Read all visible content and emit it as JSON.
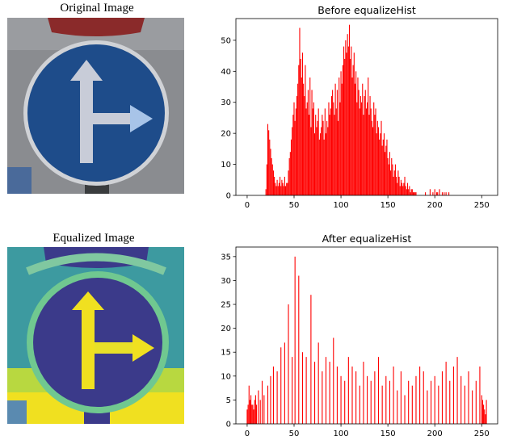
{
  "panels": {
    "original_title": "Original Image",
    "equalized_title": "Equalized Image"
  },
  "colors": {
    "bar": "#ff0000",
    "axis": "#000000",
    "sign_blue": "#1e4c8a",
    "sign_white": "#c8ccd8",
    "sign_red": "#8a2a2a",
    "eq_bg": "#3d9aa0",
    "eq_yellow": "#f0e020",
    "eq_purple": "#3b3a8a"
  },
  "icons": {
    "original": "traffic-sign-photo",
    "equalized": "equalized-traffic-sign-photo"
  },
  "chart_data": [
    {
      "type": "bar",
      "title": "Before equalizeHist",
      "xlabel": "",
      "ylabel": "",
      "xlim": [
        -12,
        267
      ],
      "ylim": [
        0,
        57
      ],
      "xticks": [
        0,
        50,
        100,
        150,
        200,
        250
      ],
      "yticks": [
        0,
        10,
        20,
        30,
        40,
        50
      ],
      "series": [
        {
          "name": "histogram",
          "x": [
            20,
            21,
            22,
            23,
            24,
            25,
            26,
            27,
            28,
            29,
            30,
            31,
            32,
            33,
            34,
            35,
            36,
            37,
            38,
            39,
            40,
            41,
            42,
            43,
            44,
            45,
            46,
            47,
            48,
            49,
            50,
            51,
            52,
            53,
            54,
            55,
            56,
            57,
            58,
            59,
            60,
            61,
            62,
            63,
            64,
            65,
            66,
            67,
            68,
            69,
            70,
            71,
            72,
            73,
            74,
            75,
            76,
            77,
            78,
            79,
            80,
            81,
            82,
            83,
            84,
            85,
            86,
            87,
            88,
            89,
            90,
            91,
            92,
            93,
            94,
            95,
            96,
            97,
            98,
            99,
            100,
            101,
            102,
            103,
            104,
            105,
            106,
            107,
            108,
            109,
            110,
            111,
            112,
            113,
            114,
            115,
            116,
            117,
            118,
            119,
            120,
            121,
            122,
            123,
            124,
            125,
            126,
            127,
            128,
            129,
            130,
            131,
            132,
            133,
            134,
            135,
            136,
            137,
            138,
            139,
            140,
            141,
            142,
            143,
            144,
            145,
            146,
            147,
            148,
            149,
            150,
            151,
            152,
            153,
            154,
            155,
            156,
            157,
            158,
            159,
            160,
            161,
            162,
            163,
            164,
            165,
            166,
            167,
            168,
            169,
            170,
            171,
            172,
            173,
            174,
            175,
            176,
            177,
            178,
            179,
            180,
            190,
            195,
            198,
            200,
            202,
            203,
            205,
            208,
            210,
            212,
            215
          ],
          "values": [
            2,
            10,
            23,
            21,
            18,
            15,
            12,
            10,
            8,
            6,
            4,
            3,
            5,
            3,
            4,
            6,
            3,
            5,
            4,
            3,
            6,
            3,
            4,
            4,
            8,
            12,
            14,
            18,
            22,
            26,
            30,
            24,
            28,
            32,
            36,
            42,
            54,
            44,
            38,
            46,
            36,
            32,
            42,
            28,
            30,
            34,
            26,
            38,
            22,
            34,
            28,
            30,
            20,
            26,
            22,
            24,
            28,
            18,
            20,
            22,
            26,
            24,
            18,
            28,
            20,
            24,
            22,
            30,
            26,
            28,
            32,
            34,
            30,
            26,
            36,
            28,
            34,
            24,
            38,
            30,
            40,
            36,
            42,
            48,
            44,
            50,
            46,
            52,
            48,
            55,
            44,
            48,
            38,
            42,
            46,
            36,
            40,
            30,
            38,
            34,
            28,
            32,
            30,
            36,
            26,
            32,
            34,
            28,
            30,
            38,
            26,
            32,
            28,
            24,
            22,
            30,
            26,
            28,
            20,
            24,
            22,
            18,
            20,
            24,
            16,
            18,
            20,
            14,
            16,
            18,
            12,
            10,
            14,
            8,
            12,
            10,
            6,
            8,
            10,
            6,
            4,
            8,
            6,
            3,
            5,
            4,
            3,
            4,
            6,
            3,
            2,
            4,
            2,
            3,
            1,
            2,
            2,
            1,
            1,
            1,
            1,
            1,
            2,
            1,
            2,
            1,
            1,
            2,
            1,
            1,
            1,
            1
          ]
        }
      ]
    },
    {
      "type": "bar",
      "title": "After equalizeHist",
      "xlabel": "",
      "ylabel": "",
      "xlim": [
        -12,
        267
      ],
      "ylim": [
        0,
        37
      ],
      "xticks": [
        0,
        50,
        100,
        150,
        200,
        250
      ],
      "yticks": [
        0,
        5,
        10,
        15,
        20,
        25,
        30,
        35
      ],
      "series": [
        {
          "name": "histogram",
          "x": [
            0,
            1,
            2,
            3,
            4,
            5,
            6,
            7,
            8,
            9,
            10,
            12,
            14,
            16,
            18,
            22,
            25,
            28,
            32,
            36,
            40,
            44,
            48,
            51,
            55,
            59,
            63,
            68,
            72,
            76,
            80,
            84,
            88,
            92,
            96,
            100,
            104,
            108,
            112,
            116,
            120,
            124,
            128,
            132,
            136,
            140,
            144,
            148,
            152,
            156,
            160,
            164,
            168,
            172,
            176,
            180,
            184,
            188,
            192,
            196,
            200,
            204,
            208,
            212,
            216,
            220,
            224,
            228,
            232,
            236,
            240,
            244,
            248,
            250,
            251,
            252,
            253,
            254,
            255
          ],
          "values": [
            3,
            4,
            8,
            5,
            6,
            4,
            4,
            3,
            5,
            6,
            4,
            7,
            5,
            9,
            6,
            8,
            10,
            12,
            11,
            16,
            17,
            25,
            14,
            35,
            31,
            15,
            14,
            27,
            13,
            17,
            11,
            14,
            13,
            18,
            12,
            10,
            9,
            14,
            12,
            11,
            8,
            13,
            10,
            9,
            11,
            14,
            8,
            10,
            9,
            12,
            7,
            11,
            6,
            9,
            8,
            10,
            12,
            11,
            7,
            9,
            10,
            8,
            11,
            13,
            9,
            12,
            14,
            10,
            8,
            11,
            7,
            9,
            12,
            6,
            5,
            4,
            3,
            2,
            5
          ]
        }
      ]
    }
  ]
}
